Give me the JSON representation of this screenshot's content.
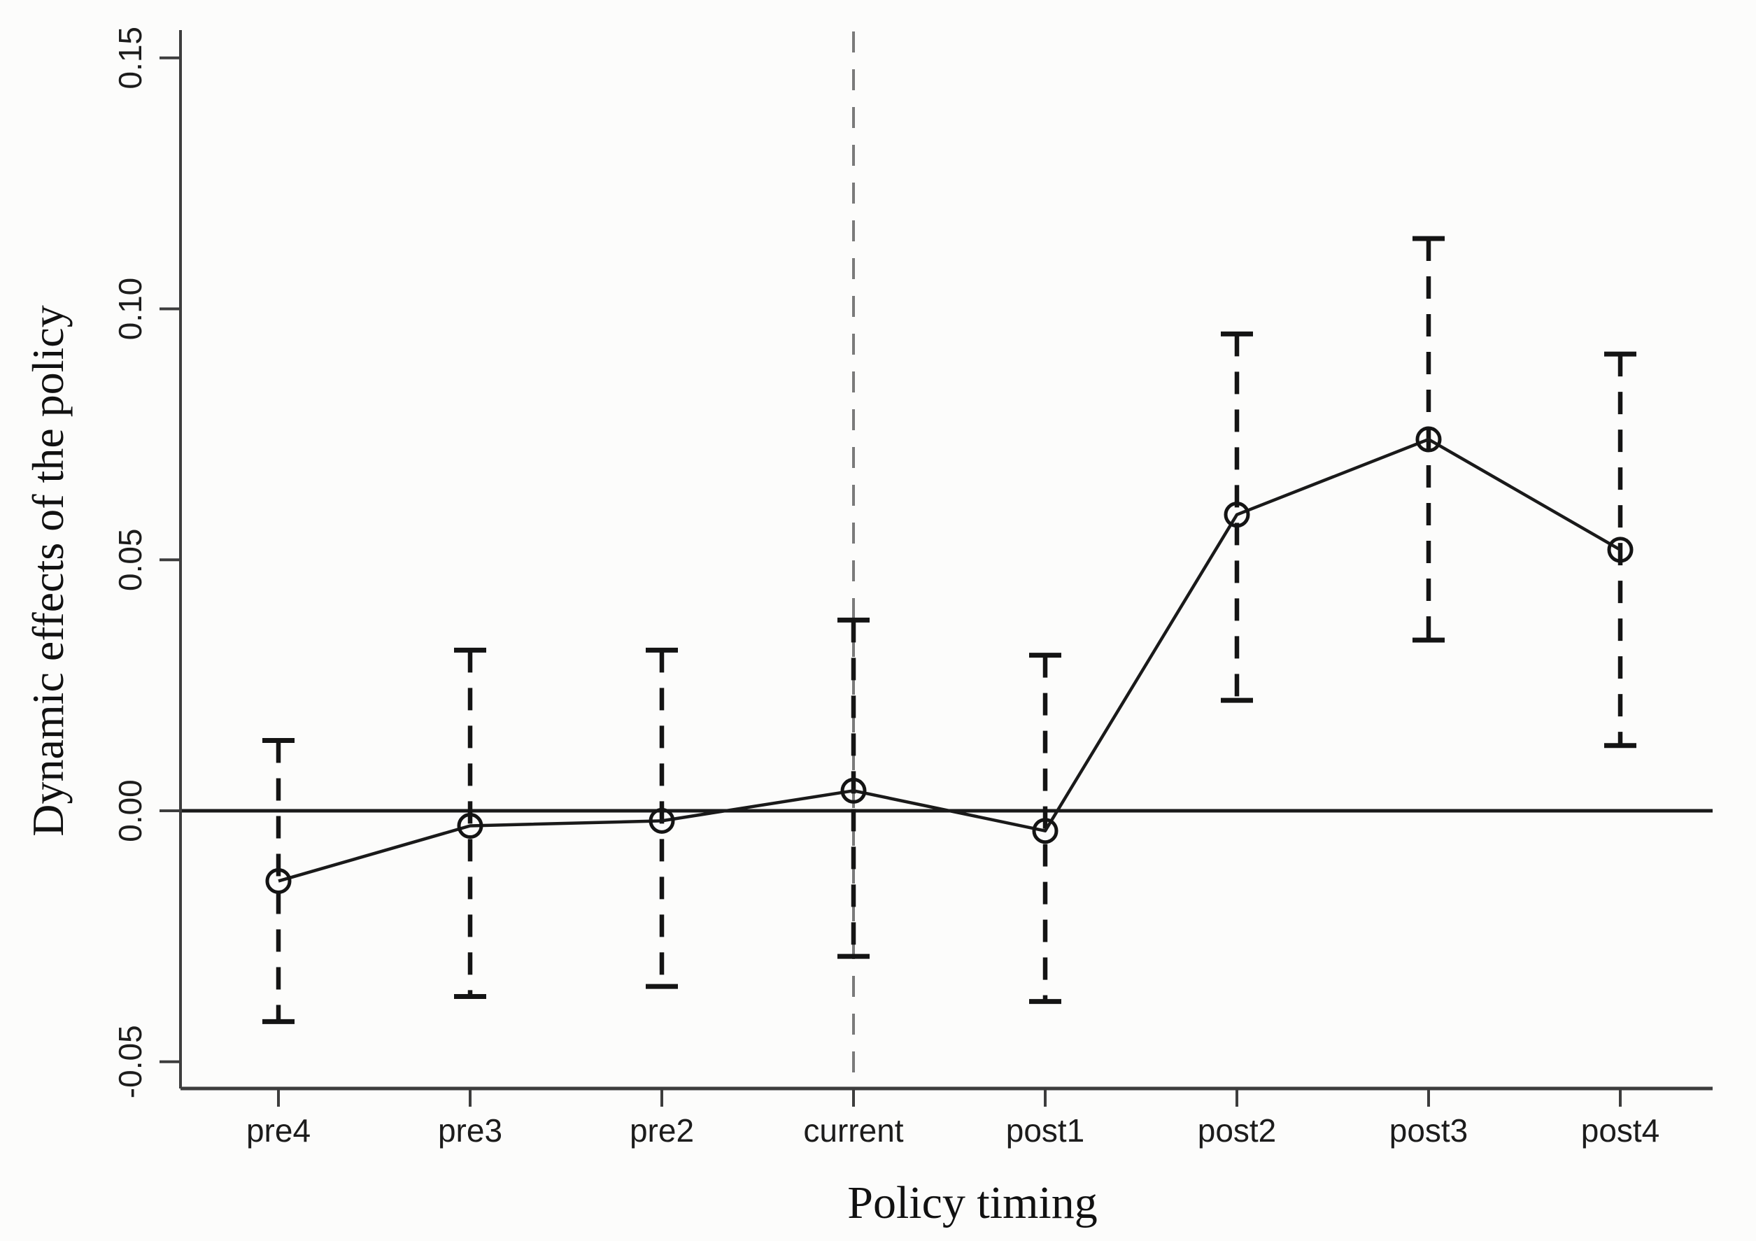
{
  "chart_data": {
    "type": "line",
    "title": "",
    "xlabel": "Policy timing",
    "ylabel": "Dynamic effects of the policy",
    "categories": [
      "pre4",
      "pre3",
      "pre2",
      "current",
      "post1",
      "post2",
      "post3",
      "post4"
    ],
    "series": [
      {
        "name": "Dynamic effect estimate",
        "values": [
          -0.014,
          -0.003,
          -0.002,
          0.004,
          -0.004,
          0.059,
          0.074,
          0.052
        ]
      }
    ],
    "error_bars": {
      "lower": [
        -0.042,
        -0.037,
        -0.035,
        -0.029,
        -0.038,
        0.022,
        0.034,
        0.013
      ],
      "upper": [
        0.014,
        0.032,
        0.032,
        0.038,
        0.031,
        0.095,
        0.114,
        0.091
      ],
      "style": "dashed-with-caps"
    },
    "y_ticks": [
      {
        "label": "-0.05",
        "value": -0.05
      },
      {
        "label": "0.00",
        "value": 0.0
      },
      {
        "label": "0.05",
        "value": 0.05
      },
      {
        "label": "0.10",
        "value": 0.1
      },
      {
        "label": "0.15",
        "value": 0.15
      }
    ],
    "ylim": [
      -0.0553,
      0.1556
    ],
    "reference_lines": {
      "horizontal_at_y": 0.0,
      "vertical_at_category": "current"
    },
    "legend": "none",
    "grid": false,
    "marker": "open-circle",
    "colors": {
      "line": "#1a1a1a",
      "marker_stroke": "#141414",
      "error_bar": "#141414",
      "zero_line": "#1a1a1a",
      "vertical_reference": "#7a7a7a",
      "axis": "#3d3d3d",
      "tick_label": "#1c1c1c",
      "background": "#fcfcfb"
    }
  }
}
